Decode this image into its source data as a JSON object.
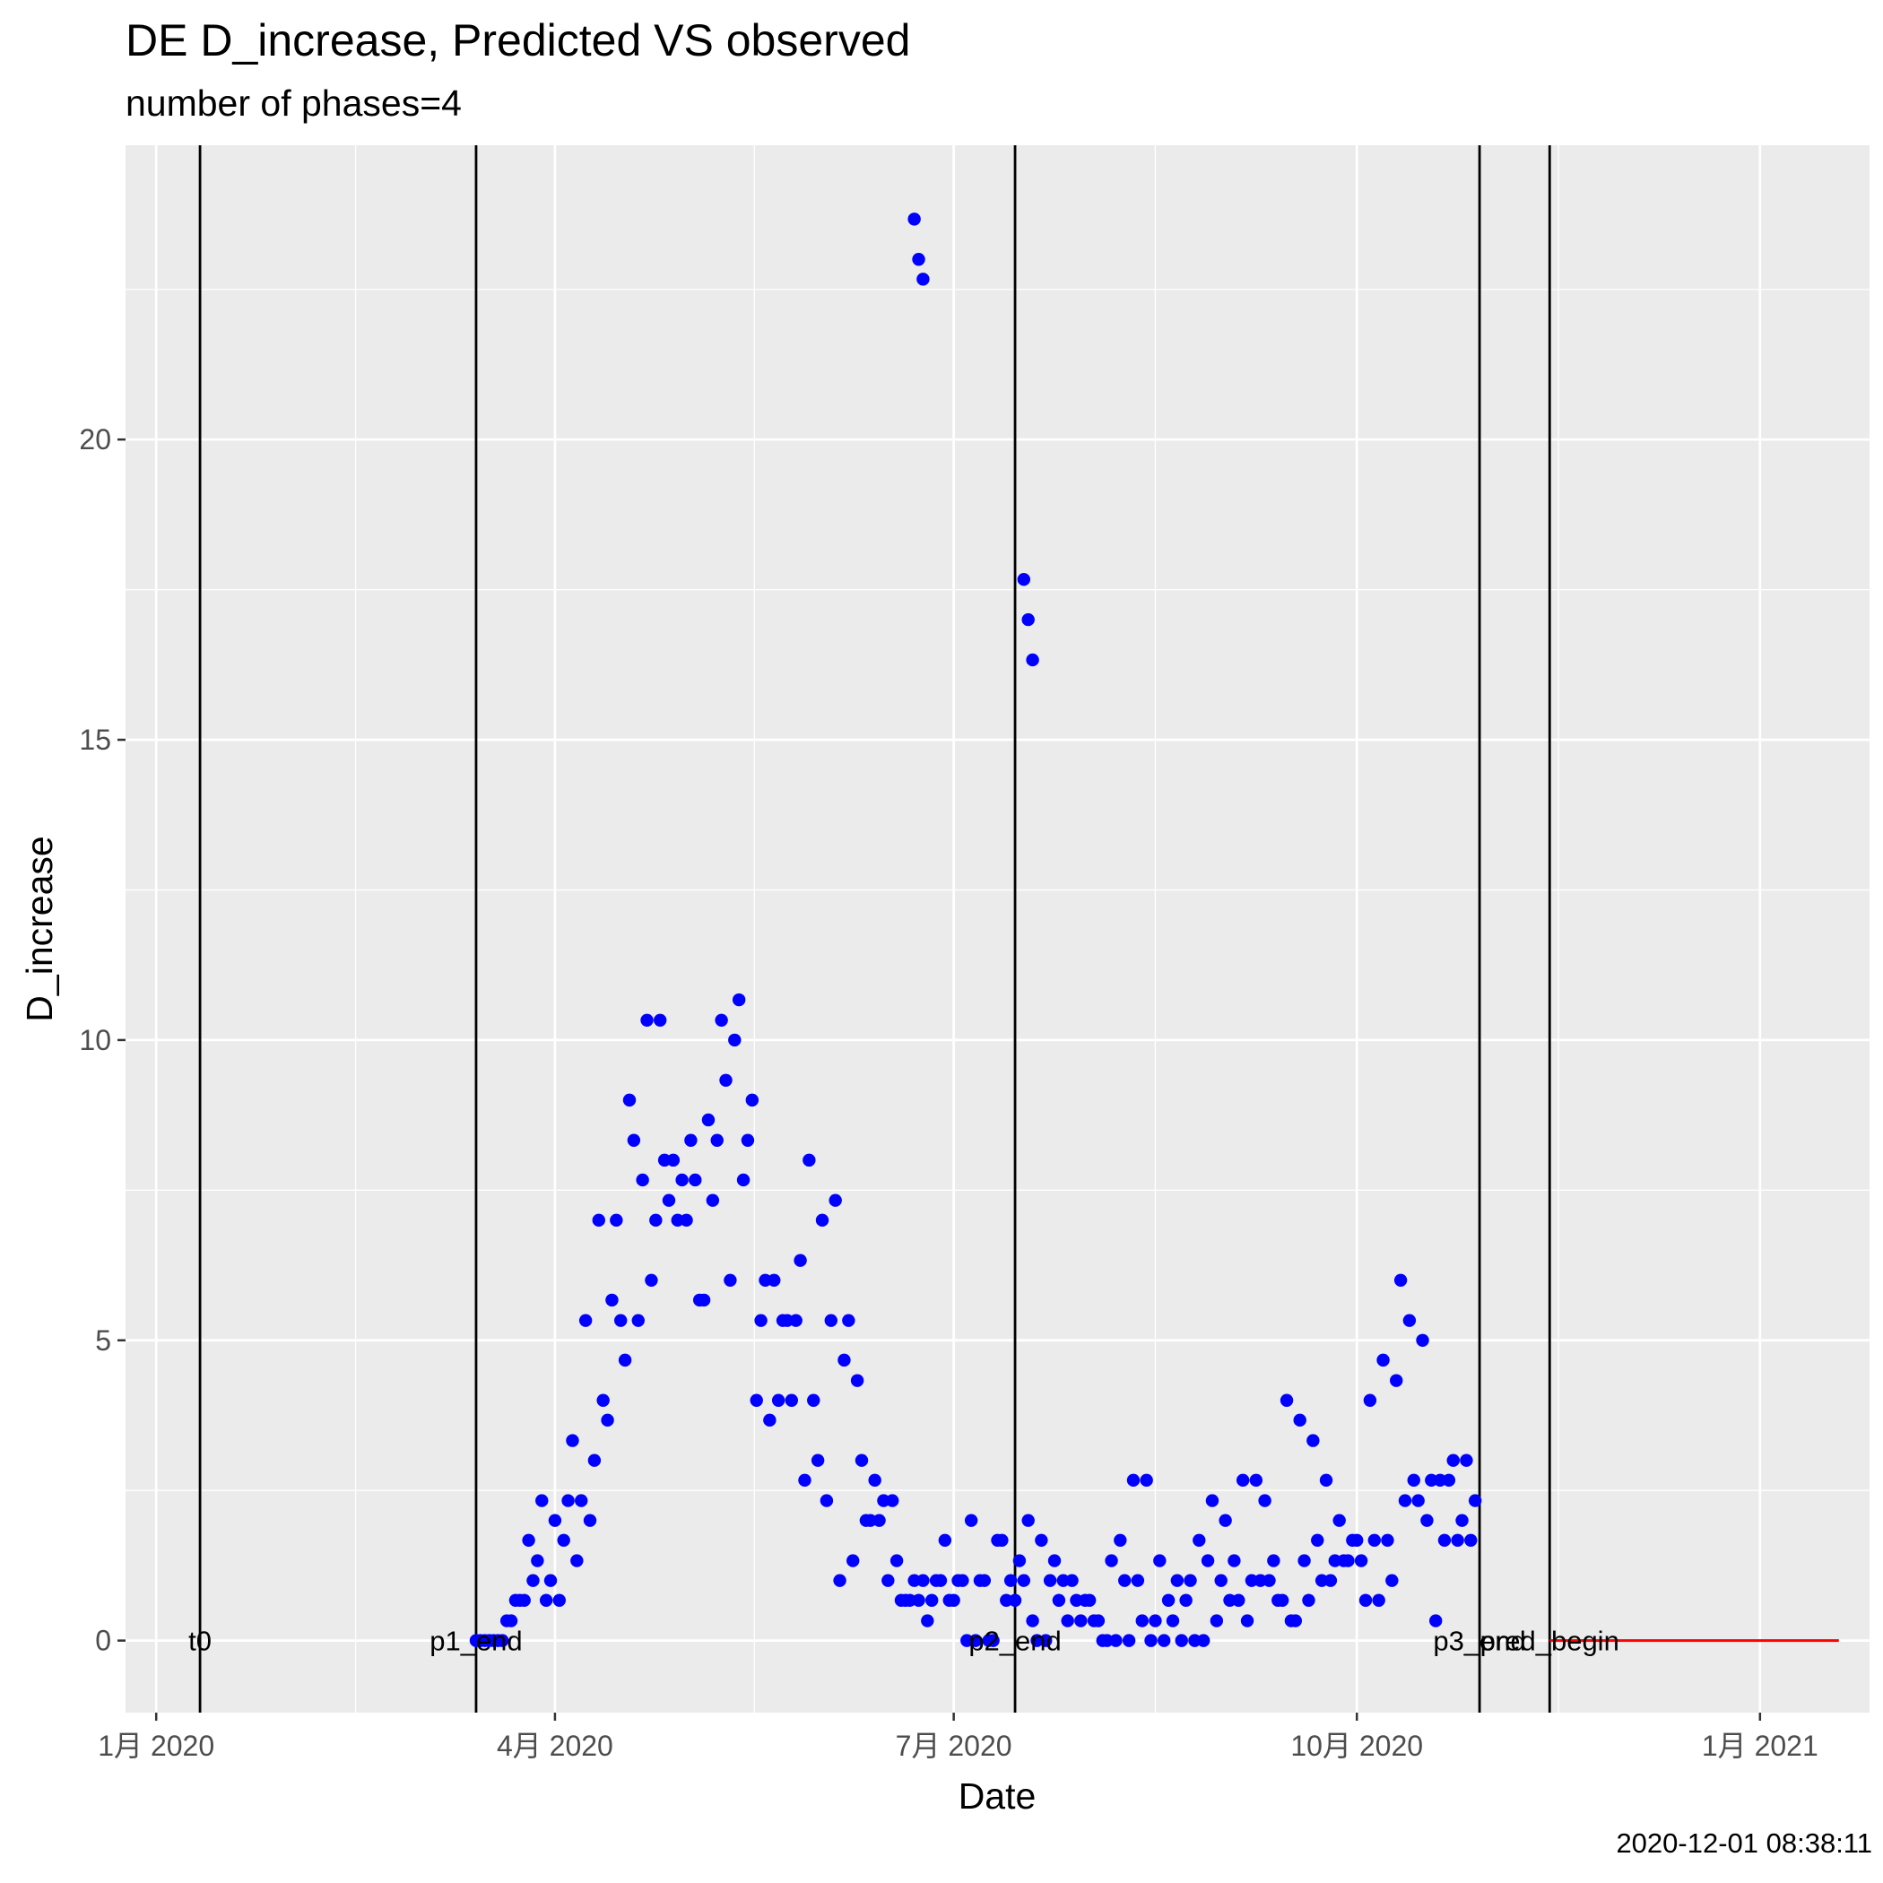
{
  "title": "DE D_increase, Predicted VS observed",
  "subtitle": "number of phases=4",
  "timestamp": "2020-12-01 08:38:11",
  "chart_data": {
    "type": "scatter",
    "xlabel": "Date",
    "ylabel": "D_increase",
    "xlim": [
      "2019-12-25",
      "2021-01-26"
    ],
    "ylim": [
      -1.2,
      24.9
    ],
    "x_ticks": [
      {
        "date": "2020-01-01",
        "label": "1月 2020"
      },
      {
        "date": "2020-04-01",
        "label": "4月 2020"
      },
      {
        "date": "2020-07-01",
        "label": "7月 2020"
      },
      {
        "date": "2020-10-01",
        "label": "10月 2020"
      },
      {
        "date": "2021-01-01",
        "label": "1月 2021"
      }
    ],
    "y_ticks": [
      0,
      5,
      10,
      15,
      20
    ],
    "grid": true,
    "colors": {
      "observed": "#0000ff",
      "predicted": "#ff0000",
      "phase_line": "#000000",
      "panel": "#ebebeb",
      "grid": "#ffffff"
    },
    "phase_lines": [
      {
        "label": "t0",
        "date": "2020-01-11"
      },
      {
        "label": "p1_end",
        "date": "2020-03-14"
      },
      {
        "label": "p2_end",
        "date": "2020-07-15"
      },
      {
        "label": "p3_end",
        "date": "2020-10-29"
      },
      {
        "label": "pred_begin",
        "date": "2020-11-14"
      }
    ],
    "series": [
      {
        "type": "scatter",
        "start_date": "2020-03-14",
        "values": [
          0,
          0,
          0,
          0,
          0,
          0,
          0,
          0.33,
          0.33,
          0.67,
          0.67,
          0.67,
          1.67,
          1,
          1.33,
          2.33,
          0.67,
          1,
          2,
          0.67,
          1.67,
          2.33,
          3.33,
          1.33,
          2.33,
          5.33,
          2,
          3,
          7,
          4,
          3.67,
          5.67,
          7,
          5.33,
          4.67,
          9,
          8.33,
          5.33,
          7.67,
          10.33,
          6,
          7,
          10.33,
          8,
          7.33,
          8,
          7,
          7.67,
          7,
          8.33,
          7.67,
          5.67,
          5.67,
          8.67,
          7.33,
          8.33,
          10.33,
          9.33,
          6,
          10,
          10.67,
          7.67,
          8.33,
          9,
          4,
          5.33,
          6,
          3.67,
          6,
          4,
          5.33,
          5.33,
          4,
          5.33,
          6.33,
          2.67,
          8,
          4,
          3,
          7,
          2.33,
          5.33,
          7.33,
          1,
          4.67,
          5.33,
          1.33,
          4.33,
          3,
          2,
          2,
          2.67,
          2,
          2.33,
          1,
          2.33,
          1.33,
          0.67,
          0.67,
          0.67,
          1,
          0.67,
          1,
          0.33,
          0.67,
          1,
          1,
          1.67,
          0.67,
          0.67,
          1,
          1,
          0,
          2,
          0,
          1,
          1,
          0,
          0,
          1.67,
          1.67,
          0.67,
          1,
          0.67,
          1.33,
          1,
          2,
          0.33,
          0,
          1.67,
          0,
          1,
          1.33,
          0.67,
          1,
          0.33,
          1,
          0.67,
          0.33,
          0.67,
          0.67,
          0.33,
          0.33,
          0,
          0,
          1.33,
          0,
          1.67,
          1,
          0,
          2.67,
          1,
          0.33,
          2.67,
          0,
          0.33,
          1.33,
          0,
          0.67,
          0.33,
          1,
          0,
          0.67,
          1,
          0,
          1.67,
          0,
          1.33,
          2.33,
          0.33,
          1,
          2,
          0.67,
          1.33,
          0.67,
          2.67,
          0.33,
          1,
          2.67,
          1,
          2.33,
          1,
          1.33,
          0.67,
          0.67,
          4,
          0.33,
          0.33,
          3.67,
          1.33,
          0.67,
          3.33,
          1.67,
          1,
          2.67,
          1,
          1.33,
          2,
          1.33,
          1.33,
          1.67,
          1.67,
          1.33,
          0.67,
          4,
          1.67,
          0.67,
          4.67,
          1.67,
          1,
          4.33,
          6,
          2.33,
          5.33,
          2.67,
          2.33,
          5,
          2,
          2.67,
          0.33,
          2.67,
          1.67,
          2.67,
          3,
          1.67,
          2,
          3,
          1.67,
          2.33
        ]
      },
      {
        "type": "scatter",
        "dates": [
          "2020-06-22",
          "2020-06-23",
          "2020-06-24",
          "2020-07-17",
          "2020-07-18",
          "2020-07-19"
        ],
        "values": [
          23.67,
          23,
          22.67,
          17.67,
          17,
          16.33
        ]
      },
      {
        "type": "line",
        "from": "2020-11-14",
        "to": "2021-01-19",
        "value": 0
      }
    ]
  }
}
